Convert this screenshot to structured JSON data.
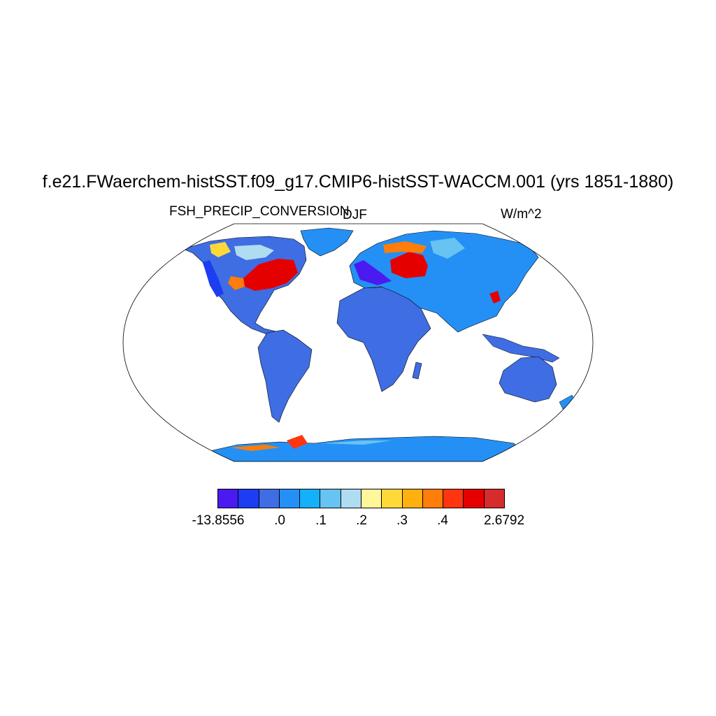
{
  "title": "f.e21.FWaerchem-histSST.f09_g17.CMIP6-histSST-WACCM.001 (yrs 1851-1880)",
  "left_label": "FSH_PRECIP_CONVERSION",
  "center_label": "DJF",
  "right_label": "W/m^2",
  "colorbar": {
    "colors": [
      "#4b1af0",
      "#1c3df2",
      "#3f6de3",
      "#2490f5",
      "#14b0fa",
      "#66c3f2",
      "#b0dcf2",
      "#fff79a",
      "#ffd93a",
      "#ffb00f",
      "#ff7d0a",
      "#ff3510",
      "#e50000",
      "#d62c2c"
    ],
    "labels": [
      "-13.8556",
      ".0",
      ".1",
      ".2",
      ".3",
      ".4",
      "2.6792"
    ]
  },
  "colors": {
    "ocean": "#ffffff",
    "land_base": "#3f6de3",
    "frame": "#000000"
  }
}
